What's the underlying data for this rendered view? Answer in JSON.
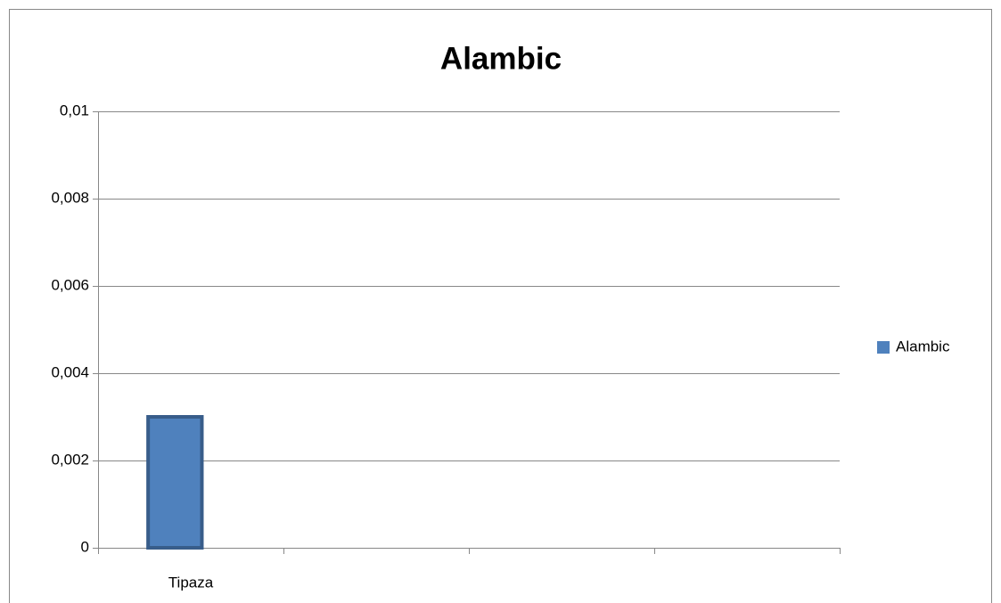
{
  "chart_data": {
    "type": "bar",
    "title": "Alambic",
    "categories": [
      "Tipaza",
      null,
      null,
      null
    ],
    "series": [
      {
        "name": "Alambic",
        "color": "#4f81bd",
        "values": [
          0.003,
          null,
          null,
          null
        ]
      }
    ],
    "ylim": [
      0,
      0.01
    ],
    "yticks": [
      0,
      {
        "value": 0.002,
        "label": "0,002"
      },
      {
        "value": 0.004,
        "label": "0,004"
      },
      {
        "value": 0.006,
        "label": "0,006"
      },
      {
        "value": 0.008,
        "label": "0,008"
      },
      {
        "value": 0.01,
        "label": "0,01"
      }
    ],
    "grid": true,
    "legend": "right"
  }
}
